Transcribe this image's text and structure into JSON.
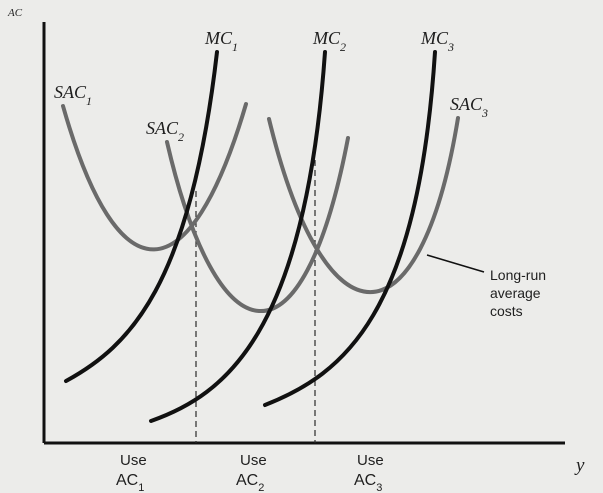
{
  "axes": {
    "y_label": "AC",
    "x_label": "y"
  },
  "labels": {
    "sac1": {
      "base": "SAC",
      "sub": "1"
    },
    "sac2": {
      "base": "SAC",
      "sub": "2"
    },
    "sac3": {
      "base": "SAC",
      "sub": "3"
    },
    "mc1": {
      "base": "MC",
      "sub": "1"
    },
    "mc2": {
      "base": "MC",
      "sub": "2"
    },
    "mc3": {
      "base": "MC",
      "sub": "3"
    }
  },
  "callout": {
    "line1": "Long-run",
    "line2": "average",
    "line3": "costs"
  },
  "bottom_labels": {
    "use1": {
      "top": "Use",
      "base": "AC",
      "sub": "1"
    },
    "use2": {
      "top": "Use",
      "base": "AC",
      "sub": "2"
    },
    "use3": {
      "top": "Use",
      "base": "AC",
      "sub": "3"
    }
  },
  "colors": {
    "background": "#ececea",
    "axis": "#111111",
    "mc": "#111111",
    "sac": "#6a6a6a",
    "dashed": "#2a2a2a"
  }
}
